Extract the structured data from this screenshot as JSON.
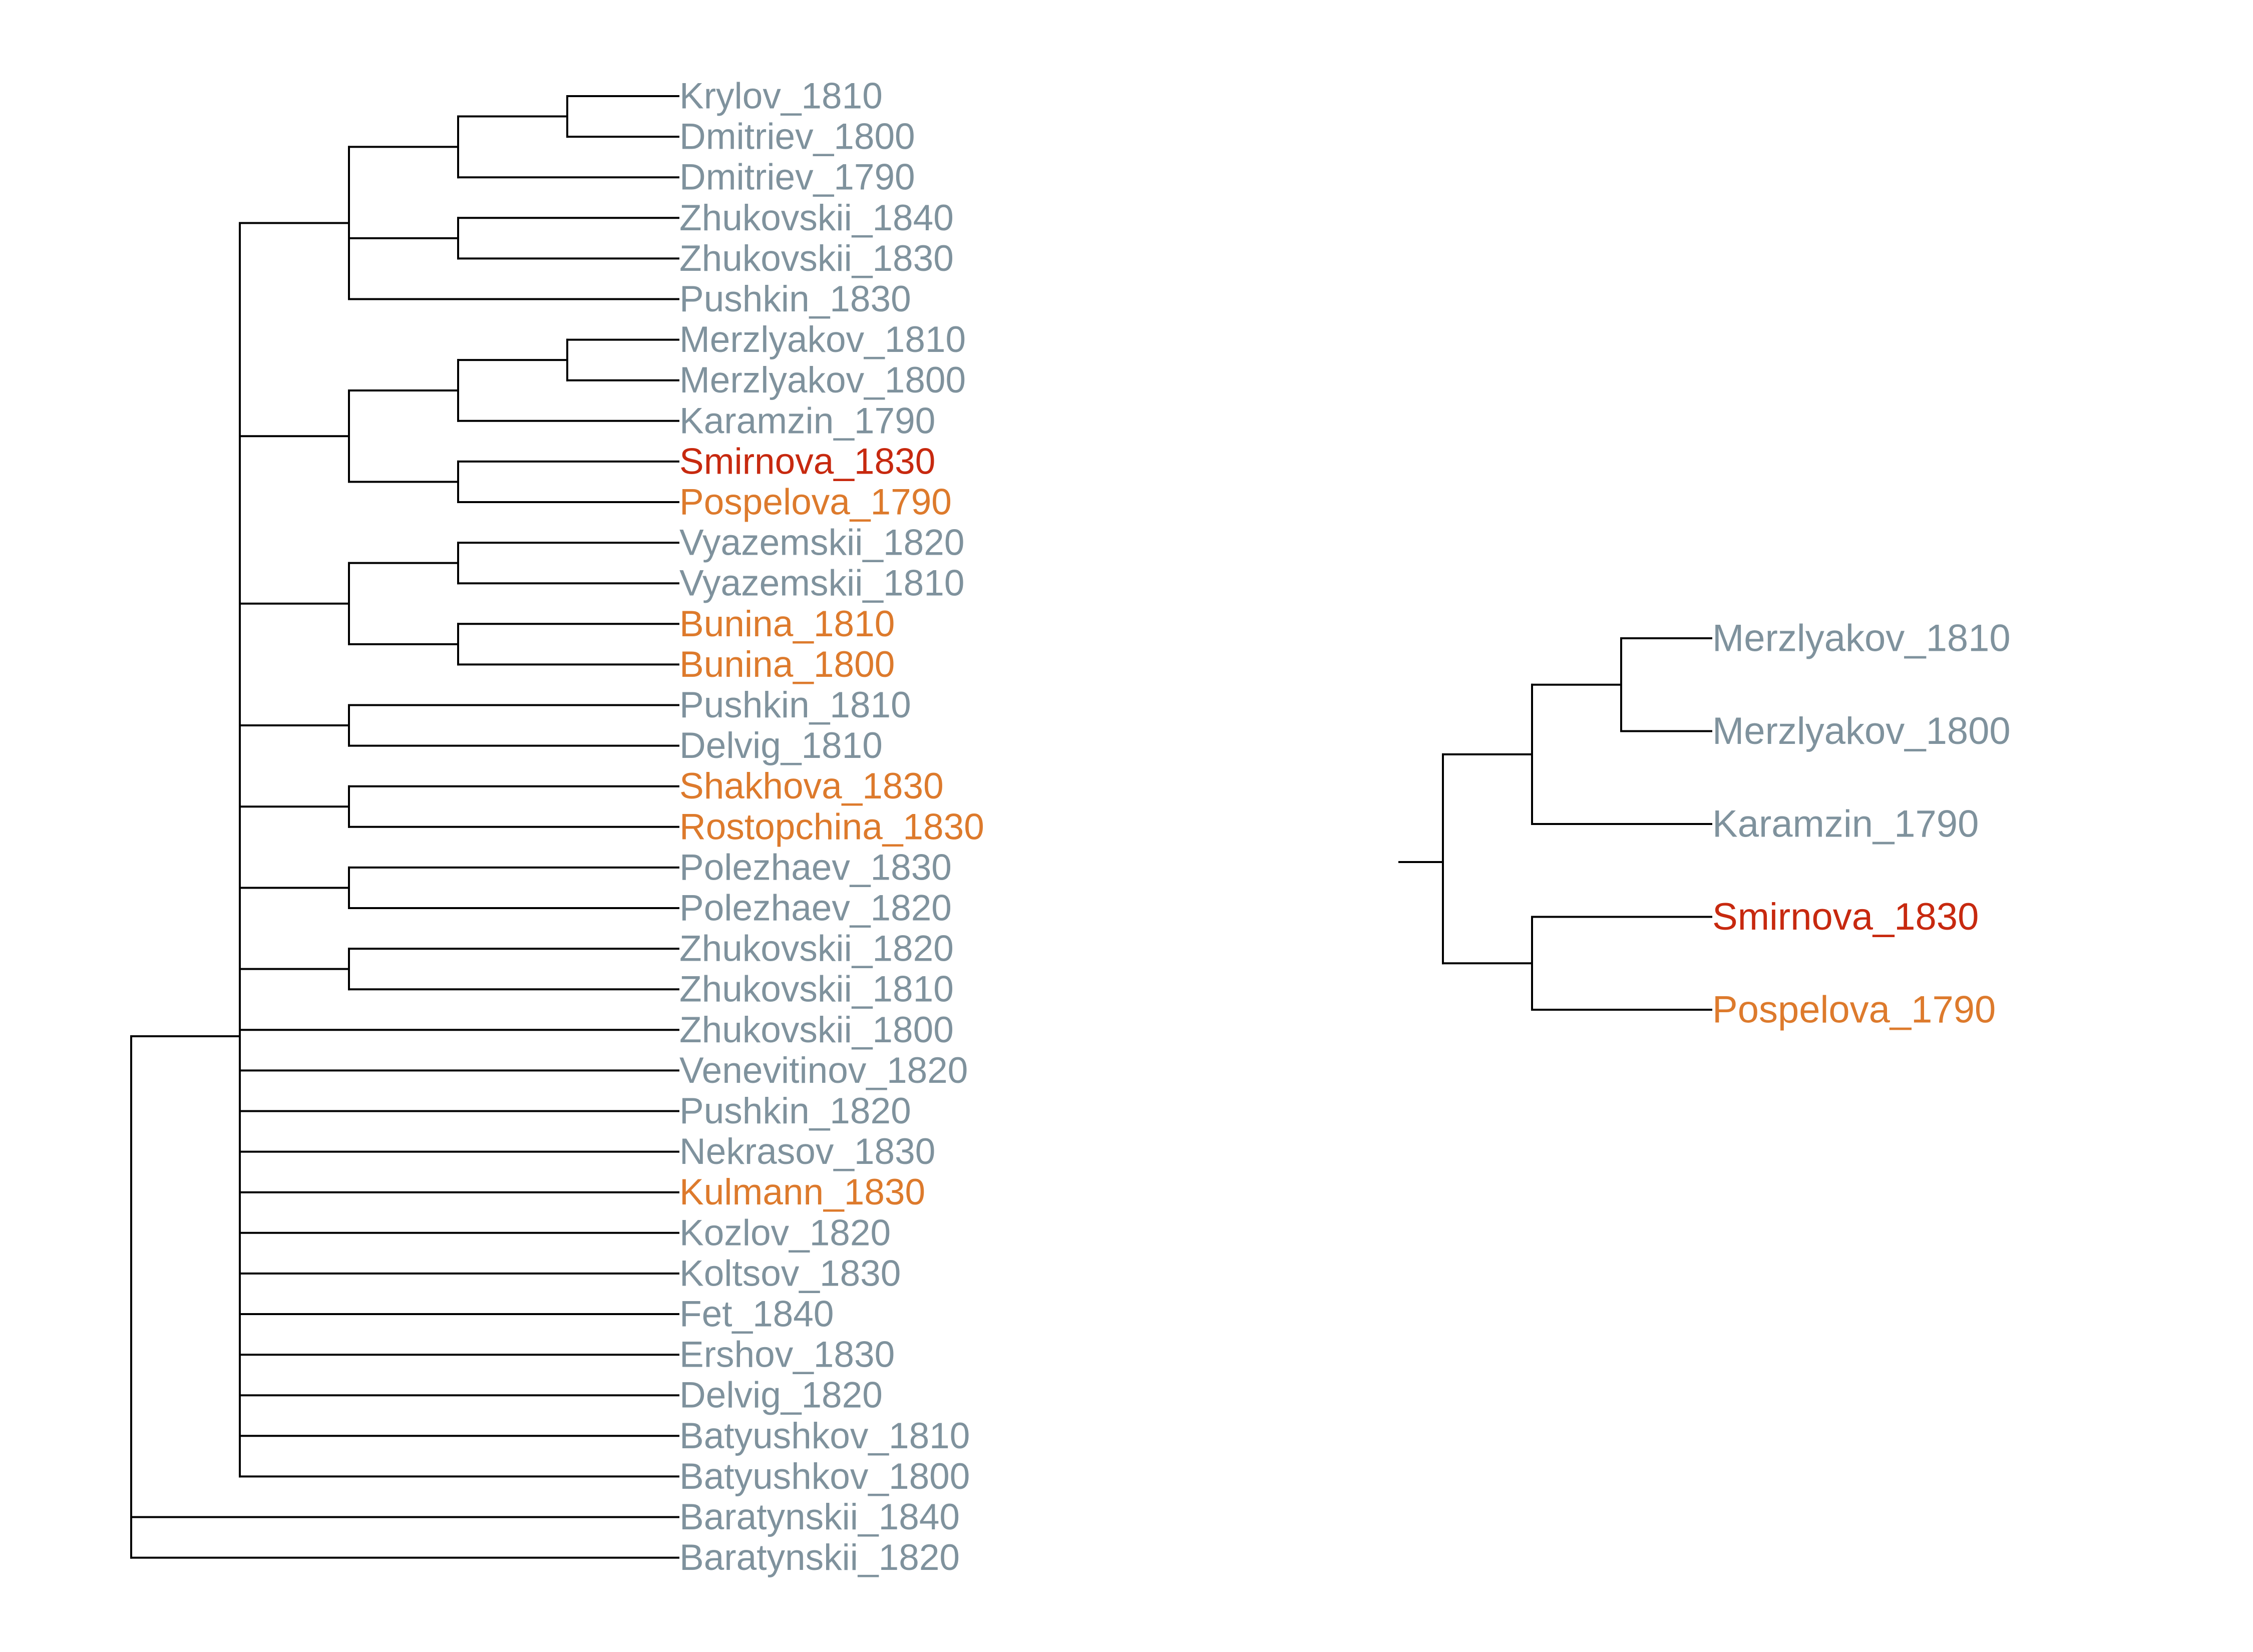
{
  "colors": {
    "male": "#7f929d",
    "female": "#dd7a2c",
    "highlight": "#c7290f",
    "edge": "#000000"
  },
  "full_tree": {
    "leaves": [
      {
        "label": "Krylov_1810",
        "group": "male"
      },
      {
        "label": "Dmitriev_1800",
        "group": "male"
      },
      {
        "label": "Dmitriev_1790",
        "group": "male"
      },
      {
        "label": "Zhukovskii_1840",
        "group": "male"
      },
      {
        "label": "Zhukovskii_1830",
        "group": "male"
      },
      {
        "label": "Pushkin_1830",
        "group": "male"
      },
      {
        "label": "Merzlyakov_1810",
        "group": "male"
      },
      {
        "label": "Merzlyakov_1800",
        "group": "male"
      },
      {
        "label": "Karamzin_1790",
        "group": "male"
      },
      {
        "label": "Smirnova_1830",
        "group": "highlight"
      },
      {
        "label": "Pospelova_1790",
        "group": "female"
      },
      {
        "label": "Vyazemskii_1820",
        "group": "male"
      },
      {
        "label": "Vyazemskii_1810",
        "group": "male"
      },
      {
        "label": "Bunina_1810",
        "group": "female"
      },
      {
        "label": "Bunina_1800",
        "group": "female"
      },
      {
        "label": "Pushkin_1810",
        "group": "male"
      },
      {
        "label": "Delvig_1810",
        "group": "male"
      },
      {
        "label": "Shakhova_1830",
        "group": "female"
      },
      {
        "label": "Rostopchina_1830",
        "group": "female"
      },
      {
        "label": "Polezhaev_1830",
        "group": "male"
      },
      {
        "label": "Polezhaev_1820",
        "group": "male"
      },
      {
        "label": "Zhukovskii_1820",
        "group": "male"
      },
      {
        "label": "Zhukovskii_1810",
        "group": "male"
      },
      {
        "label": "Zhukovskii_1800",
        "group": "male"
      },
      {
        "label": "Venevitinov_1820",
        "group": "male"
      },
      {
        "label": "Pushkin_1820",
        "group": "male"
      },
      {
        "label": "Nekrasov_1830",
        "group": "male"
      },
      {
        "label": "Kulmann_1830",
        "group": "female"
      },
      {
        "label": "Kozlov_1820",
        "group": "male"
      },
      {
        "label": "Koltsov_1830",
        "group": "male"
      },
      {
        "label": "Fet_1840",
        "group": "male"
      },
      {
        "label": "Ershov_1830",
        "group": "male"
      },
      {
        "label": "Delvig_1820",
        "group": "male"
      },
      {
        "label": "Batyushkov_1810",
        "group": "male"
      },
      {
        "label": "Batyushkov_1800",
        "group": "male"
      },
      {
        "label": "Baratynskii_1840",
        "group": "male"
      },
      {
        "label": "Baratynskii_1820",
        "group": "male"
      }
    ],
    "clusters": [
      [
        [
          [
            0,
            1
          ],
          2
        ],
        [
          3,
          4
        ],
        5
      ],
      [
        [
          [
            6,
            7
          ],
          8
        ],
        [
          9,
          10
        ]
      ],
      [
        [
          11,
          12
        ],
        [
          13,
          14
        ]
      ],
      [
        15,
        16
      ],
      [
        17,
        18
      ],
      [
        19,
        20
      ],
      [
        21,
        22
      ],
      23,
      24,
      25,
      26,
      27,
      28,
      29,
      30,
      31,
      32,
      33,
      34
    ],
    "outgroup": [
      35,
      36
    ]
  },
  "subtree": {
    "leaves": [
      {
        "label": "Merzlyakov_1810",
        "group": "male"
      },
      {
        "label": "Merzlyakov_1800",
        "group": "male"
      },
      {
        "label": "Karamzin_1790",
        "group": "male"
      },
      {
        "label": "Smirnova_1830",
        "group": "highlight"
      },
      {
        "label": "Pospelova_1790",
        "group": "female"
      }
    ],
    "topology": [
      [
        [
          0,
          1
        ],
        2
      ],
      [
        3,
        4
      ]
    ]
  }
}
